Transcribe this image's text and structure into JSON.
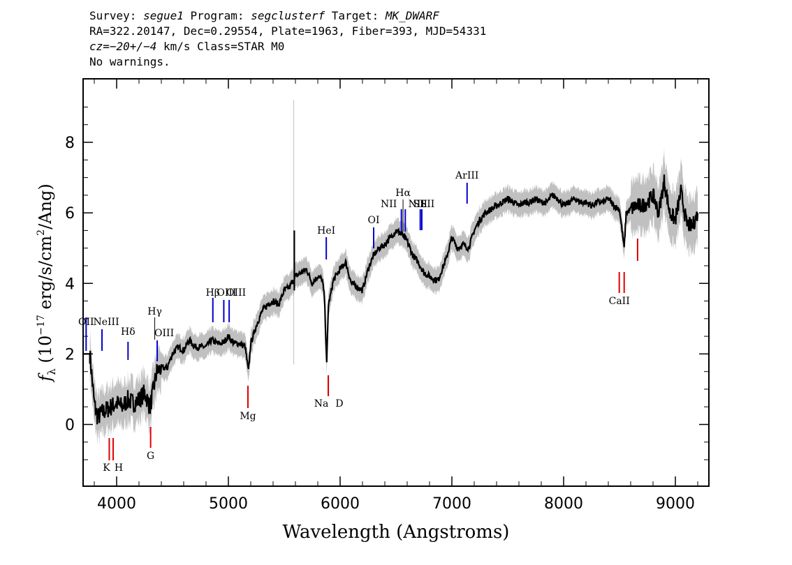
{
  "header": {
    "line1": {
      "survey_label": "Survey: ",
      "survey": "segue1",
      "program_label": " Program: ",
      "program": "segclusterf",
      "target_label": " Target: ",
      "target": "MK_DWARF"
    },
    "line2": "RA=322.20147, Dec=0.29554, Plate=1963, Fiber=393, MJD=54331",
    "line3": {
      "cz": "cz=−20+/−4",
      "rest": " km/s Class=STAR M0"
    },
    "line4": "No warnings."
  },
  "chart_data": {
    "type": "line",
    "xlabel": "Wavelength (Angstroms)",
    "ylabel": "f_λ (10^-17 erg/s/cm^2/Ang)",
    "xlim": [
      3700,
      9300
    ],
    "ylim": [
      -1.75,
      9.8
    ],
    "xticks": [
      4000,
      5000,
      6000,
      7000,
      8000,
      9000
    ],
    "yticks": [
      0,
      2,
      4,
      6,
      8
    ],
    "series": [
      {
        "kind": "flux",
        "color": "#000000",
        "x": [
          3760,
          3800,
          3830,
          3860,
          3900,
          3950,
          4000,
          4050,
          4100,
          4150,
          4200,
          4250,
          4300,
          4330,
          4360,
          4400,
          4450,
          4500,
          4550,
          4600,
          4650,
          4700,
          4750,
          4800,
          4850,
          4900,
          4950,
          5000,
          5050,
          5100,
          5150,
          5180,
          5200,
          5250,
          5300,
          5350,
          5400,
          5450,
          5500,
          5550,
          5600,
          5650,
          5700,
          5750,
          5800,
          5840,
          5860,
          5880,
          5895,
          5910,
          5940,
          5980,
          6000,
          6050,
          6100,
          6150,
          6200,
          6250,
          6300,
          6350,
          6400,
          6450,
          6500,
          6550,
          6600,
          6650,
          6700,
          6750,
          6800,
          6850,
          6880,
          6900,
          6950,
          7000,
          7050,
          7100,
          7150,
          7200,
          7250,
          7300,
          7350,
          7400,
          7450,
          7500,
          7550,
          7600,
          7650,
          7700,
          7750,
          7800,
          7850,
          7900,
          7950,
          8000,
          8050,
          8100,
          8150,
          8200,
          8250,
          8300,
          8350,
          8400,
          8450,
          8500,
          8542,
          8560,
          8600,
          8650,
          8700,
          8750,
          8800,
          8850,
          8900,
          8950,
          9000,
          9050,
          9100,
          9150,
          9200
        ],
        "y": [
          2.0,
          0.6,
          0.2,
          0.3,
          0.4,
          0.5,
          0.6,
          0.5,
          0.7,
          0.6,
          0.7,
          0.9,
          0.5,
          1.0,
          1.5,
          1.6,
          1.6,
          2.0,
          2.2,
          2.1,
          2.4,
          2.2,
          2.2,
          2.2,
          2.4,
          2.3,
          2.3,
          2.5,
          2.3,
          2.3,
          2.2,
          1.5,
          2.3,
          2.8,
          3.2,
          3.4,
          3.5,
          3.4,
          3.8,
          3.9,
          4.2,
          4.3,
          4.4,
          4.0,
          4.2,
          4.1,
          3.6,
          1.7,
          3.4,
          3.6,
          4.1,
          4.3,
          4.4,
          4.6,
          4.0,
          3.9,
          3.8,
          4.4,
          4.8,
          5.0,
          5.1,
          5.3,
          5.5,
          5.4,
          5.2,
          4.8,
          4.6,
          4.3,
          4.2,
          4.1,
          4.1,
          4.3,
          4.7,
          5.3,
          5.0,
          5.1,
          5.0,
          5.5,
          5.8,
          6.0,
          6.1,
          6.2,
          6.3,
          6.4,
          6.3,
          6.2,
          6.3,
          6.3,
          6.4,
          6.3,
          6.3,
          6.5,
          6.4,
          6.2,
          6.3,
          6.4,
          6.3,
          6.3,
          6.2,
          6.3,
          6.3,
          6.4,
          6.2,
          6.1,
          5.0,
          6.0,
          6.1,
          6.2,
          6.2,
          6.3,
          6.5,
          6.0,
          6.9,
          6.0,
          5.8,
          6.6,
          5.7,
          5.6,
          6.0
        ]
      },
      {
        "kind": "flux_error",
        "color": "#c0c0c0"
      }
    ],
    "line_labels": [
      {
        "label": "OII",
        "x": 3727,
        "color": "#0000cc"
      },
      {
        "label": "NeIII",
        "x": 3869,
        "color": "#0000cc"
      },
      {
        "label": "Hδ",
        "x": 4102,
        "color": "#0000cc"
      },
      {
        "label": "Hγ",
        "x": 4341,
        "color": "#0000cc"
      },
      {
        "label": "OIII",
        "x": 4363,
        "color": "#0000cc"
      },
      {
        "label": "Hβ",
        "x": 4861,
        "color": "#0000cc"
      },
      {
        "label": "OIII",
        "x": 4959,
        "color": "#0000cc"
      },
      {
        "label": "OIII",
        "x": 5007,
        "color": "#0000cc"
      },
      {
        "label": "HeI",
        "x": 5876,
        "color": "#0000cc"
      },
      {
        "label": "OI",
        "x": 6300,
        "color": "#0000cc"
      },
      {
        "label": "NII",
        "x": 6548,
        "color": "#0000cc"
      },
      {
        "label": "Hα",
        "x": 6563,
        "color": "#0000cc"
      },
      {
        "label": "NII",
        "x": 6583,
        "color": "#0000cc"
      },
      {
        "label": "SII",
        "x": 6717,
        "color": "#0000cc"
      },
      {
        "label": "SII",
        "x": 6731,
        "color": "#0000cc"
      },
      {
        "label": "ArIII",
        "x": 7136,
        "color": "#0000cc"
      },
      {
        "label": "K",
        "x": 3934,
        "color": "#dd0000"
      },
      {
        "label": "H",
        "x": 3969,
        "color": "#dd0000"
      },
      {
        "label": "G",
        "x": 4304,
        "color": "#dd0000"
      },
      {
        "label": "Mg",
        "x": 5175,
        "color": "#dd0000"
      },
      {
        "label": "Na",
        "x": 5894,
        "color": "#dd0000"
      },
      {
        "label": "D",
        "x": 5894,
        "color": "#dd0000"
      },
      {
        "label": "CaII",
        "x": 8498,
        "color": "#dd0000"
      },
      {
        "label": "CaII",
        "x": 8542,
        "color": "#dd0000"
      },
      {
        "label": "CaII",
        "x": 8662,
        "color": "#dd0000"
      }
    ]
  }
}
